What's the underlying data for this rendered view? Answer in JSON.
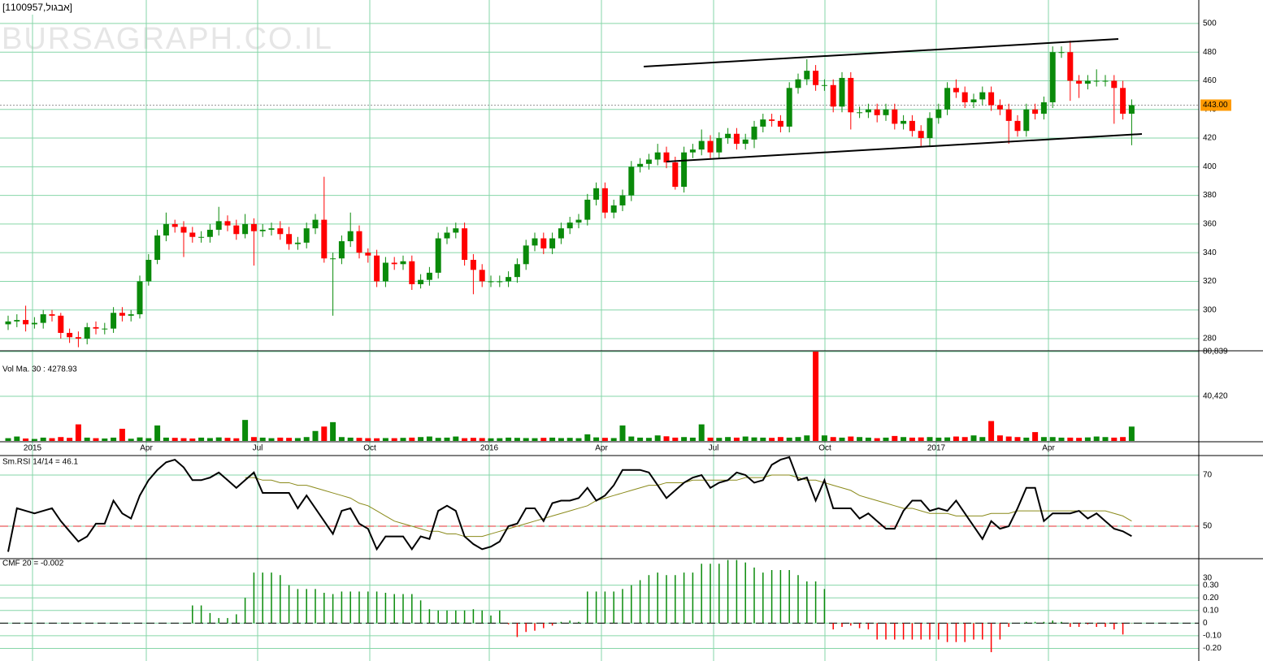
{
  "title": "[1100957,אבגול]",
  "watermark": "BURSAGRAPH.CO.IL",
  "chart_data": [
    {
      "type": "candlestick",
      "grid": true,
      "up_color": "#0a8a0a",
      "down_color": "#ff0000",
      "ylim": [
        271.5,
        516.4
      ],
      "yticks": [
        280,
        300,
        320,
        340,
        360,
        380,
        400,
        420,
        440,
        460,
        480,
        500
      ],
      "last_price": {
        "value": 443,
        "label": "443.00"
      },
      "x_labels": [
        "2015",
        "Apr",
        "Jul",
        "Oct",
        "2016",
        "Apr",
        "Jul",
        "Oct",
        "2017",
        "Apr"
      ],
      "open": [
        290,
        292,
        293,
        290,
        291,
        297,
        296,
        284,
        281,
        280,
        288,
        287,
        287,
        298,
        296,
        297,
        320,
        335,
        352,
        360,
        358,
        354,
        351,
        351,
        356,
        362,
        359,
        353,
        360,
        355,
        356,
        357,
        353,
        346,
        347,
        357,
        363,
        336,
        336,
        348,
        355,
        340,
        338,
        320,
        333,
        332,
        334,
        318,
        321,
        326,
        350,
        354,
        357,
        335,
        328,
        320,
        320,
        320,
        323,
        332,
        345,
        350,
        343,
        350,
        357,
        361,
        363,
        377,
        385,
        368,
        373,
        380,
        400,
        402,
        405,
        410,
        403,
        386,
        410,
        412,
        418,
        410,
        420,
        423,
        416,
        419,
        428,
        433,
        432,
        428,
        455,
        461,
        467,
        457,
        457,
        442,
        462,
        438,
        438,
        440,
        436,
        440,
        430,
        432,
        425,
        420,
        434,
        440,
        455,
        452,
        445,
        447,
        452,
        443,
        440,
        432,
        425,
        440,
        437,
        445,
        480,
        480,
        460,
        458,
        460,
        460,
        460,
        455,
        437
      ],
      "high": [
        296,
        297,
        303,
        295,
        300,
        300,
        298,
        287,
        285,
        291,
        292,
        291,
        302,
        302,
        300,
        324,
        339,
        356,
        368,
        363,
        362,
        358,
        355,
        360,
        372,
        366,
        363,
        367,
        364,
        360,
        361,
        362,
        358,
        351,
        361,
        367,
        393,
        340,
        352,
        368,
        359,
        343,
        342,
        337,
        337,
        338,
        338,
        325,
        330,
        354,
        358,
        361,
        361,
        339,
        332,
        324,
        324,
        327,
        336,
        349,
        354,
        354,
        354,
        361,
        365,
        367,
        381,
        389,
        389,
        377,
        384,
        404,
        406,
        409,
        416,
        414,
        407,
        414,
        416,
        426,
        422,
        424,
        427,
        427,
        423,
        432,
        437,
        437,
        436,
        459,
        465,
        475,
        471,
        461,
        461,
        466,
        466,
        442,
        444,
        444,
        444,
        444,
        436,
        436,
        429,
        438,
        444,
        459,
        461,
        456,
        451,
        456,
        456,
        447,
        444,
        436,
        444,
        444,
        449,
        484,
        484,
        488,
        464,
        464,
        468,
        464,
        464,
        460,
        447
      ],
      "low": [
        286,
        288,
        285,
        287,
        287,
        292,
        280,
        277,
        274,
        276,
        283,
        283,
        284,
        292,
        292,
        294,
        317,
        332,
        348,
        354,
        337,
        347,
        347,
        347,
        352,
        355,
        349,
        350,
        331,
        351,
        352,
        349,
        342,
        342,
        343,
        353,
        333,
        296,
        332,
        344,
        336,
        333,
        316,
        316,
        328,
        328,
        314,
        315,
        317,
        322,
        346,
        350,
        331,
        311,
        316,
        316,
        316,
        316,
        319,
        328,
        341,
        339,
        339,
        346,
        353,
        357,
        359,
        373,
        364,
        364,
        369,
        376,
        396,
        398,
        401,
        399,
        384,
        382,
        406,
        408,
        406,
        406,
        416,
        412,
        412,
        413,
        424,
        428,
        424,
        424,
        451,
        457,
        453,
        453,
        438,
        438,
        426,
        434,
        434,
        431,
        432,
        426,
        426,
        421,
        414,
        414,
        430,
        436,
        448,
        441,
        441,
        443,
        439,
        436,
        416,
        421,
        421,
        433,
        433,
        441,
        476,
        446,
        448,
        454,
        456,
        456,
        430,
        433,
        415
      ],
      "close": [
        292,
        293,
        290,
        291,
        297,
        296,
        284,
        281,
        280,
        288,
        287,
        287,
        298,
        296,
        297,
        320,
        335,
        352,
        360,
        358,
        354,
        351,
        351,
        356,
        362,
        359,
        353,
        360,
        355,
        356,
        357,
        353,
        346,
        347,
        357,
        363,
        336,
        336,
        348,
        355,
        340,
        338,
        320,
        333,
        332,
        334,
        318,
        321,
        326,
        350,
        354,
        357,
        335,
        328,
        320,
        320,
        320,
        323,
        332,
        345,
        350,
        343,
        350,
        357,
        361,
        363,
        377,
        385,
        368,
        373,
        380,
        400,
        402,
        405,
        410,
        403,
        386,
        410,
        412,
        418,
        410,
        420,
        423,
        416,
        419,
        428,
        433,
        432,
        428,
        455,
        461,
        467,
        457,
        457,
        442,
        462,
        438,
        438,
        440,
        436,
        440,
        430,
        432,
        425,
        420,
        434,
        440,
        455,
        452,
        445,
        447,
        452,
        443,
        440,
        432,
        425,
        440,
        437,
        445,
        480,
        480,
        460,
        458,
        460,
        460,
        460,
        455,
        437,
        443
      ]
    },
    {
      "type": "bar",
      "label": "Vol Ma. 30 : 4278.93",
      "ylim": [
        0,
        80839
      ],
      "yticks": [
        {
          "value": 40420,
          "label": "40,420"
        },
        {
          "value": 80839,
          "label": "80,839"
        }
      ],
      "values": [
        2500,
        4000,
        2200,
        1800,
        3000,
        2500,
        3500,
        2800,
        15000,
        3000,
        2500,
        2200,
        3000,
        11000,
        2000,
        3200,
        2500,
        14000,
        3000,
        2800,
        2500,
        2200,
        3000,
        2600,
        3200,
        2800,
        2400,
        19000,
        3500,
        3000,
        2500,
        3000,
        2800,
        2600,
        3500,
        9000,
        13000,
        17000,
        3500,
        3000,
        2800,
        2500,
        2400,
        2600,
        2500,
        2800,
        3000,
        3500,
        4000,
        2800,
        3000,
        4000,
        2500,
        2800,
        2600,
        2400,
        2500,
        3000,
        2800,
        2600,
        2500,
        2800,
        3000,
        2600,
        2800,
        2500,
        6000,
        3200,
        2800,
        2600,
        14000,
        4000,
        3000,
        2800,
        5000,
        4200,
        3000,
        3500,
        3000,
        15000,
        3000,
        2800,
        3500,
        3000,
        4000,
        3200,
        3000,
        2800,
        3500,
        3000,
        3500,
        5000,
        80839,
        5000,
        3500,
        3000,
        4000,
        3500,
        3000,
        2500,
        3000,
        4500,
        3500,
        3000,
        3200,
        3500,
        3000,
        3200,
        4000,
        3500,
        5000,
        3500,
        18000,
        5000,
        4000,
        3500,
        3000,
        8000,
        3500,
        3500,
        3000,
        3000,
        2800,
        3200,
        4000,
        3500,
        3000,
        3500,
        13000
      ]
    },
    {
      "type": "line",
      "label": "Sm.RSI 14/14 = 46.1",
      "ylim": [
        37.3,
        77.3
      ],
      "yticks": [
        50,
        70
      ],
      "reference_line": 50,
      "color": "#000000",
      "ma_color": "#8a8a1a",
      "ref_color": "#e03030",
      "values": [
        40,
        57,
        56,
        55,
        56,
        57,
        52,
        48,
        44,
        46,
        51,
        51,
        60,
        55,
        53,
        62,
        68,
        72,
        75,
        76,
        73,
        68,
        68,
        69,
        71,
        68,
        65,
        68,
        71,
        63,
        63,
        63,
        63,
        57,
        62,
        57,
        52,
        47,
        56,
        57,
        51,
        49,
        41,
        46,
        46,
        46,
        41,
        46,
        45,
        56,
        58,
        56,
        46,
        43,
        41,
        42,
        44,
        50,
        51,
        57,
        57,
        52,
        59,
        60,
        60,
        61,
        65,
        60,
        62,
        66,
        72,
        72,
        72,
        71,
        66,
        61,
        64,
        67,
        69,
        70,
        65,
        67,
        68,
        71,
        70,
        67,
        68,
        74,
        76,
        77,
        68,
        69,
        60,
        68,
        57,
        57,
        57,
        53,
        55,
        52,
        49,
        49,
        56,
        60,
        60,
        56,
        57,
        56,
        60,
        55,
        50,
        45,
        52,
        49,
        50,
        57,
        65,
        65,
        52,
        55,
        55,
        55,
        56,
        53,
        55,
        52,
        49,
        48,
        46.1
      ],
      "ma_values": [
        null,
        null,
        null,
        null,
        null,
        null,
        null,
        null,
        null,
        null,
        null,
        null,
        null,
        null,
        null,
        null,
        null,
        null,
        null,
        null,
        null,
        null,
        null,
        null,
        null,
        null,
        null,
        69,
        69,
        68,
        68,
        67,
        67,
        66,
        66,
        65,
        64,
        63,
        62,
        61,
        59,
        58,
        56,
        54,
        52,
        51,
        50,
        49,
        48,
        48,
        47,
        47,
        46,
        46,
        46,
        47,
        48,
        49,
        50,
        51,
        52,
        53,
        54,
        55,
        56,
        57,
        58,
        60,
        61,
        62,
        63,
        64,
        65,
        66,
        66,
        67,
        67,
        67,
        68,
        68,
        68,
        68,
        68,
        68,
        69,
        69,
        69,
        70,
        70,
        70,
        69,
        68,
        68,
        67,
        66,
        65,
        64,
        62,
        61,
        60,
        59,
        58,
        57,
        57,
        56,
        55,
        55,
        55,
        54,
        54,
        54,
        54,
        55,
        55,
        55,
        56,
        56,
        56,
        56,
        56,
        56,
        56,
        56,
        56,
        56,
        56,
        55,
        54,
        52
      ]
    },
    {
      "type": "bar",
      "label": "CMF 20 = -0.002",
      "ylim": [
        -0.3,
        0.51
      ],
      "annotation": "30",
      "up_color": "#0a8a0a",
      "down_color": "#ff0000",
      "yticks": [
        {
          "value": 0.3,
          "label": "0.30"
        },
        {
          "value": 0.2,
          "label": "0.20"
        },
        {
          "value": 0.1,
          "label": "0.10"
        },
        0,
        {
          "value": -0.1,
          "label": "-0.10"
        },
        {
          "value": -0.2,
          "label": "-0.20"
        }
      ],
      "values": [
        null,
        null,
        null,
        null,
        null,
        null,
        null,
        null,
        null,
        null,
        null,
        null,
        null,
        null,
        null,
        null,
        null,
        null,
        null,
        null,
        null,
        0.14,
        0.14,
        0.08,
        0.04,
        0.04,
        0.07,
        0.2,
        0.4,
        0.4,
        0.4,
        0.38,
        0.3,
        0.27,
        0.27,
        0.27,
        0.24,
        0.23,
        0.25,
        0.25,
        0.25,
        0.25,
        0.25,
        0.24,
        0.23,
        0.23,
        0.23,
        0.18,
        0.11,
        0.1,
        0.1,
        0.1,
        0.1,
        0.11,
        0.1,
        0.06,
        0.1,
        -0.01,
        -0.11,
        -0.07,
        -0.06,
        -0.04,
        -0.02,
        0.01,
        0.02,
        0.01,
        0.25,
        0.25,
        0.25,
        0.25,
        0.27,
        0.3,
        0.34,
        0.38,
        0.4,
        0.38,
        0.38,
        0.4,
        0.4,
        0.47,
        0.47,
        0.47,
        0.5,
        0.5,
        0.48,
        0.44,
        0.4,
        0.42,
        0.42,
        0.42,
        0.38,
        0.33,
        0.33,
        0.27,
        -0.05,
        -0.03,
        -0.02,
        -0.04,
        -0.05,
        -0.13,
        -0.13,
        -0.13,
        -0.13,
        -0.13,
        -0.13,
        -0.13,
        -0.13,
        -0.15,
        -0.15,
        -0.15,
        -0.13,
        -0.13,
        -0.23,
        -0.13,
        -0.03,
        0,
        0.01,
        0.01,
        0.01,
        0.02,
        0.01,
        -0.03,
        -0.03,
        -0.01,
        -0.03,
        -0.03,
        -0.05,
        -0.09,
        -0.002
      ]
    }
  ]
}
